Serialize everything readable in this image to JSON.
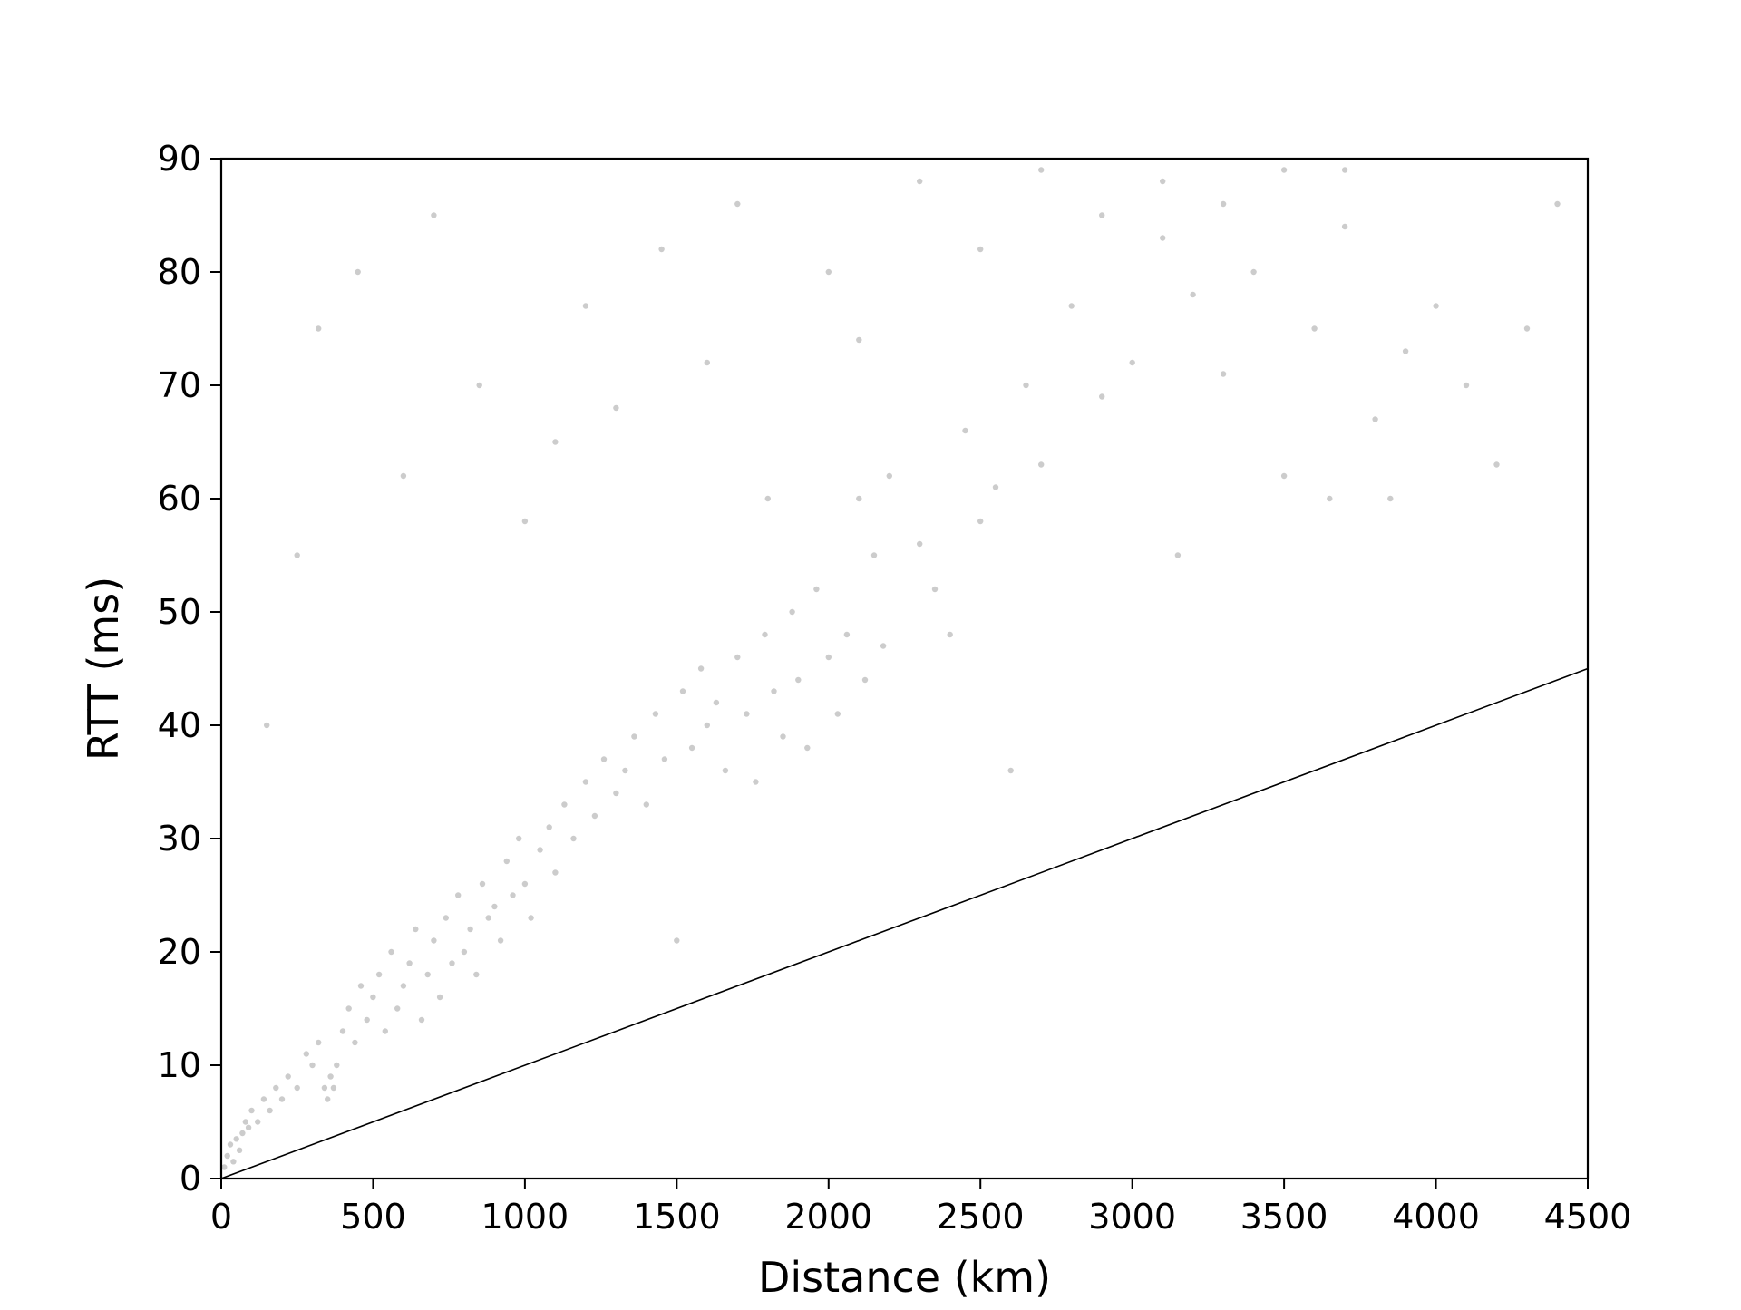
{
  "chart_data": {
    "type": "scatter",
    "title": "",
    "xlabel": "Distance (km)",
    "ylabel": "RTT (ms)",
    "xlim": [
      0,
      4500
    ],
    "ylim": [
      0,
      90
    ],
    "x_ticks": [
      0,
      500,
      1000,
      1500,
      2000,
      2500,
      3000,
      3500,
      4000,
      4500
    ],
    "y_ticks": [
      0,
      10,
      20,
      30,
      40,
      50,
      60,
      70,
      80,
      90
    ],
    "grid": false,
    "legend": "none",
    "point_color": "#000000",
    "point_opacity": 0.2,
    "reference_line": {
      "x": [
        0,
        4500
      ],
      "y": [
        0,
        45
      ],
      "color": "#000000"
    },
    "series": [
      {
        "points": [
          [
            10,
            1
          ],
          [
            20,
            2
          ],
          [
            30,
            3
          ],
          [
            40,
            1.5
          ],
          [
            50,
            3.5
          ],
          [
            60,
            2.5
          ],
          [
            70,
            4
          ],
          [
            80,
            5
          ],
          [
            90,
            4.5
          ],
          [
            100,
            6
          ],
          [
            120,
            5
          ],
          [
            140,
            7
          ],
          [
            160,
            6
          ],
          [
            180,
            8
          ],
          [
            200,
            7
          ],
          [
            220,
            9
          ],
          [
            250,
            8
          ],
          [
            280,
            11
          ],
          [
            300,
            10
          ],
          [
            320,
            12
          ],
          [
            340,
            8
          ],
          [
            350,
            7
          ],
          [
            360,
            9
          ],
          [
            370,
            8
          ],
          [
            380,
            10
          ],
          [
            400,
            13
          ],
          [
            420,
            15
          ],
          [
            440,
            12
          ],
          [
            460,
            17
          ],
          [
            480,
            14
          ],
          [
            500,
            16
          ],
          [
            520,
            18
          ],
          [
            540,
            13
          ],
          [
            560,
            20
          ],
          [
            580,
            15
          ],
          [
            600,
            17
          ],
          [
            620,
            19
          ],
          [
            640,
            22
          ],
          [
            660,
            14
          ],
          [
            680,
            18
          ],
          [
            700,
            21
          ],
          [
            720,
            16
          ],
          [
            740,
            23
          ],
          [
            760,
            19
          ],
          [
            780,
            25
          ],
          [
            800,
            20
          ],
          [
            820,
            22
          ],
          [
            840,
            18
          ],
          [
            860,
            26
          ],
          [
            880,
            23
          ],
          [
            900,
            24
          ],
          [
            920,
            21
          ],
          [
            940,
            28
          ],
          [
            960,
            25
          ],
          [
            980,
            30
          ],
          [
            1000,
            26
          ],
          [
            1020,
            23
          ],
          [
            1050,
            29
          ],
          [
            1080,
            31
          ],
          [
            1100,
            27
          ],
          [
            1130,
            33
          ],
          [
            1160,
            30
          ],
          [
            1200,
            35
          ],
          [
            1230,
            32
          ],
          [
            1260,
            37
          ],
          [
            1300,
            34
          ],
          [
            1330,
            36
          ],
          [
            1360,
            39
          ],
          [
            1400,
            33
          ],
          [
            1430,
            41
          ],
          [
            1460,
            37
          ],
          [
            1500,
            21
          ],
          [
            1520,
            43
          ],
          [
            1550,
            38
          ],
          [
            1580,
            45
          ],
          [
            1600,
            40
          ],
          [
            1630,
            42
          ],
          [
            1660,
            36
          ],
          [
            1700,
            46
          ],
          [
            1730,
            41
          ],
          [
            1760,
            35
          ],
          [
            1790,
            48
          ],
          [
            1820,
            43
          ],
          [
            1850,
            39
          ],
          [
            1880,
            50
          ],
          [
            1900,
            44
          ],
          [
            1930,
            38
          ],
          [
            1960,
            52
          ],
          [
            2000,
            46
          ],
          [
            2030,
            41
          ],
          [
            2060,
            48
          ],
          [
            2100,
            60
          ],
          [
            2120,
            44
          ],
          [
            2150,
            55
          ],
          [
            2180,
            47
          ],
          [
            2200,
            62
          ],
          [
            2300,
            56
          ],
          [
            2350,
            52
          ],
          [
            2400,
            48
          ],
          [
            2450,
            66
          ],
          [
            2500,
            58
          ],
          [
            2550,
            61
          ],
          [
            2600,
            36
          ],
          [
            2650,
            70
          ],
          [
            2700,
            63
          ],
          [
            2800,
            77
          ],
          [
            2900,
            69
          ],
          [
            3000,
            72
          ],
          [
            3100,
            83
          ],
          [
            3150,
            55
          ],
          [
            3200,
            78
          ],
          [
            3300,
            71
          ],
          [
            3400,
            80
          ],
          [
            3500,
            62
          ],
          [
            3600,
            75
          ],
          [
            3650,
            60
          ],
          [
            3700,
            84
          ],
          [
            3800,
            67
          ],
          [
            3850,
            60
          ],
          [
            3900,
            73
          ],
          [
            4000,
            77
          ],
          [
            4100,
            70
          ],
          [
            4200,
            63
          ],
          [
            4300,
            75
          ],
          [
            4400,
            86
          ],
          [
            150,
            40
          ],
          [
            250,
            55
          ],
          [
            320,
            75
          ],
          [
            450,
            80
          ],
          [
            600,
            62
          ],
          [
            700,
            85
          ],
          [
            850,
            70
          ],
          [
            1000,
            58
          ],
          [
            1100,
            65
          ],
          [
            1200,
            77
          ],
          [
            1300,
            68
          ],
          [
            1450,
            82
          ],
          [
            1600,
            72
          ],
          [
            1700,
            86
          ],
          [
            1800,
            60
          ],
          [
            2000,
            80
          ],
          [
            2100,
            74
          ],
          [
            2300,
            88
          ],
          [
            2500,
            82
          ],
          [
            2700,
            89
          ],
          [
            2900,
            85
          ],
          [
            3100,
            88
          ],
          [
            3300,
            86
          ],
          [
            3500,
            89
          ],
          [
            3700,
            89
          ]
        ]
      }
    ]
  }
}
